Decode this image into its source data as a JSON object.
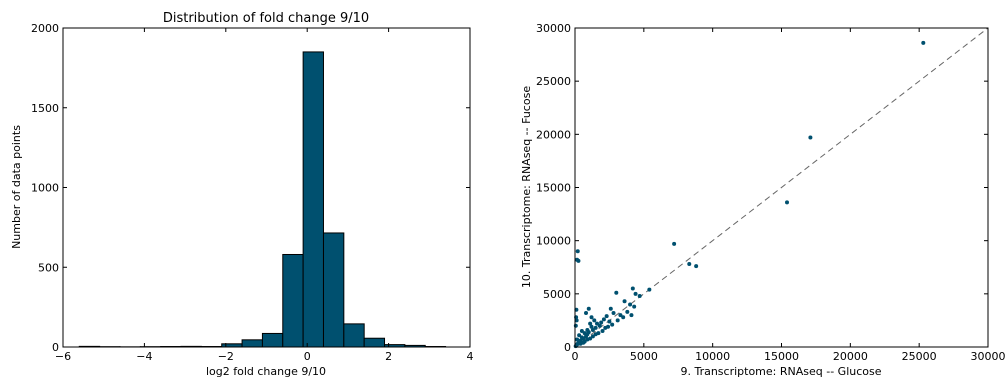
{
  "chart_data": [
    {
      "type": "bar",
      "title": "Distribution of fold change 9/10",
      "xlabel": "log2 fold change 9/10",
      "ylabel": "Number of data points",
      "xlim": [
        -6,
        4
      ],
      "ylim": [
        0,
        2000
      ],
      "xticks": [
        -6,
        -4,
        -2,
        0,
        2,
        4
      ],
      "yticks": [
        0,
        500,
        1000,
        1500,
        2000
      ],
      "xtick_labels": [
        "−6",
        "−4",
        "−2",
        "0",
        "2",
        "4"
      ],
      "ytick_labels": [
        "0",
        "500",
        "1000",
        "1500",
        "2000"
      ],
      "bar_color": "#00506f",
      "bins": [
        {
          "x0": -5.6,
          "x1": -5.1,
          "count": 4
        },
        {
          "x0": -5.1,
          "x1": -4.6,
          "count": 2
        },
        {
          "x0": -4.6,
          "x1": -4.1,
          "count": 1
        },
        {
          "x0": -4.1,
          "x1": -3.6,
          "count": 2
        },
        {
          "x0": -3.6,
          "x1": -3.1,
          "count": 3
        },
        {
          "x0": -3.1,
          "x1": -2.6,
          "count": 4
        },
        {
          "x0": -2.6,
          "x1": -2.1,
          "count": 3
        },
        {
          "x0": -2.1,
          "x1": -1.6,
          "count": 20
        },
        {
          "x0": -1.6,
          "x1": -1.1,
          "count": 45
        },
        {
          "x0": -1.1,
          "x1": -0.6,
          "count": 85
        },
        {
          "x0": -0.6,
          "x1": -0.1,
          "count": 580
        },
        {
          "x0": -0.1,
          "x1": 0.4,
          "count": 1850
        },
        {
          "x0": 0.4,
          "x1": 0.9,
          "count": 715
        },
        {
          "x0": 0.9,
          "x1": 1.4,
          "count": 145
        },
        {
          "x0": 1.4,
          "x1": 1.9,
          "count": 55
        },
        {
          "x0": 1.9,
          "x1": 2.4,
          "count": 15
        },
        {
          "x0": 2.4,
          "x1": 2.9,
          "count": 10
        },
        {
          "x0": 2.9,
          "x1": 3.4,
          "count": 3
        }
      ]
    },
    {
      "type": "scatter",
      "title": "",
      "xlabel": "9. Transcriptome: RNAseq -- Glucose",
      "ylabel": "10. Transcriptome: RNAseq -- Fucose",
      "xlim": [
        0,
        30000
      ],
      "ylim": [
        0,
        30000
      ],
      "xticks": [
        0,
        5000,
        10000,
        15000,
        20000,
        25000,
        30000
      ],
      "yticks": [
        0,
        5000,
        10000,
        15000,
        20000,
        25000,
        30000
      ],
      "xtick_labels": [
        "0",
        "5000",
        "10000",
        "15000",
        "20000",
        "25000",
        "30000"
      ],
      "ytick_labels": [
        "0",
        "5000",
        "10000",
        "15000",
        "20000",
        "25000",
        "30000"
      ],
      "point_color": "#00506f",
      "reference_line": {
        "style": "dashed",
        "color": "#666666",
        "from": [
          0,
          0
        ],
        "to": [
          30000,
          30000
        ]
      },
      "points": [
        [
          25300,
          28600
        ],
        [
          17100,
          19700
        ],
        [
          15400,
          13600
        ],
        [
          7200,
          9700
        ],
        [
          8300,
          7800
        ],
        [
          8800,
          7600
        ],
        [
          5400,
          5400
        ],
        [
          4200,
          5500
        ],
        [
          4400,
          5000
        ],
        [
          4700,
          4800
        ],
        [
          3000,
          5100
        ],
        [
          3600,
          4300
        ],
        [
          4000,
          4000
        ],
        [
          4300,
          3800
        ],
        [
          3800,
          3300
        ],
        [
          4100,
          3000
        ],
        [
          3300,
          3000
        ],
        [
          2800,
          3200
        ],
        [
          2600,
          3600
        ],
        [
          2300,
          2900
        ],
        [
          2500,
          2400
        ],
        [
          2100,
          2600
        ],
        [
          1900,
          2300
        ],
        [
          1800,
          2000
        ],
        [
          1600,
          2200
        ],
        [
          1500,
          1800
        ],
        [
          1300,
          1600
        ],
        [
          1200,
          1900
        ],
        [
          1000,
          1400
        ],
        [
          900,
          1200
        ],
        [
          800,
          1000
        ],
        [
          700,
          1300
        ],
        [
          600,
          800
        ],
        [
          500,
          900
        ],
        [
          400,
          600
        ],
        [
          300,
          500
        ],
        [
          250,
          350
        ],
        [
          150,
          250
        ],
        [
          100,
          150
        ],
        [
          50,
          80
        ],
        [
          200,
          9000
        ],
        [
          150,
          8200
        ],
        [
          250,
          8100
        ],
        [
          100,
          3500
        ],
        [
          80,
          2800
        ],
        [
          120,
          2500
        ],
        [
          60,
          2000
        ],
        [
          1000,
          3600
        ],
        [
          800,
          3200
        ],
        [
          1200,
          2800
        ],
        [
          2000,
          1500
        ],
        [
          2200,
          1800
        ],
        [
          1700,
          1300
        ],
        [
          1500,
          1200
        ],
        [
          1300,
          1000
        ],
        [
          1100,
          800
        ],
        [
          900,
          700
        ],
        [
          700,
          500
        ],
        [
          600,
          400
        ],
        [
          400,
          300
        ],
        [
          350,
          450
        ],
        [
          200,
          300
        ],
        [
          3100,
          2500
        ],
        [
          2700,
          2100
        ],
        [
          2400,
          1900
        ],
        [
          3500,
          2800
        ],
        [
          1400,
          2500
        ],
        [
          1100,
          2200
        ],
        [
          500,
          1500
        ],
        [
          300,
          1100
        ],
        [
          150,
          700
        ],
        [
          900,
          1600
        ]
      ]
    }
  ]
}
